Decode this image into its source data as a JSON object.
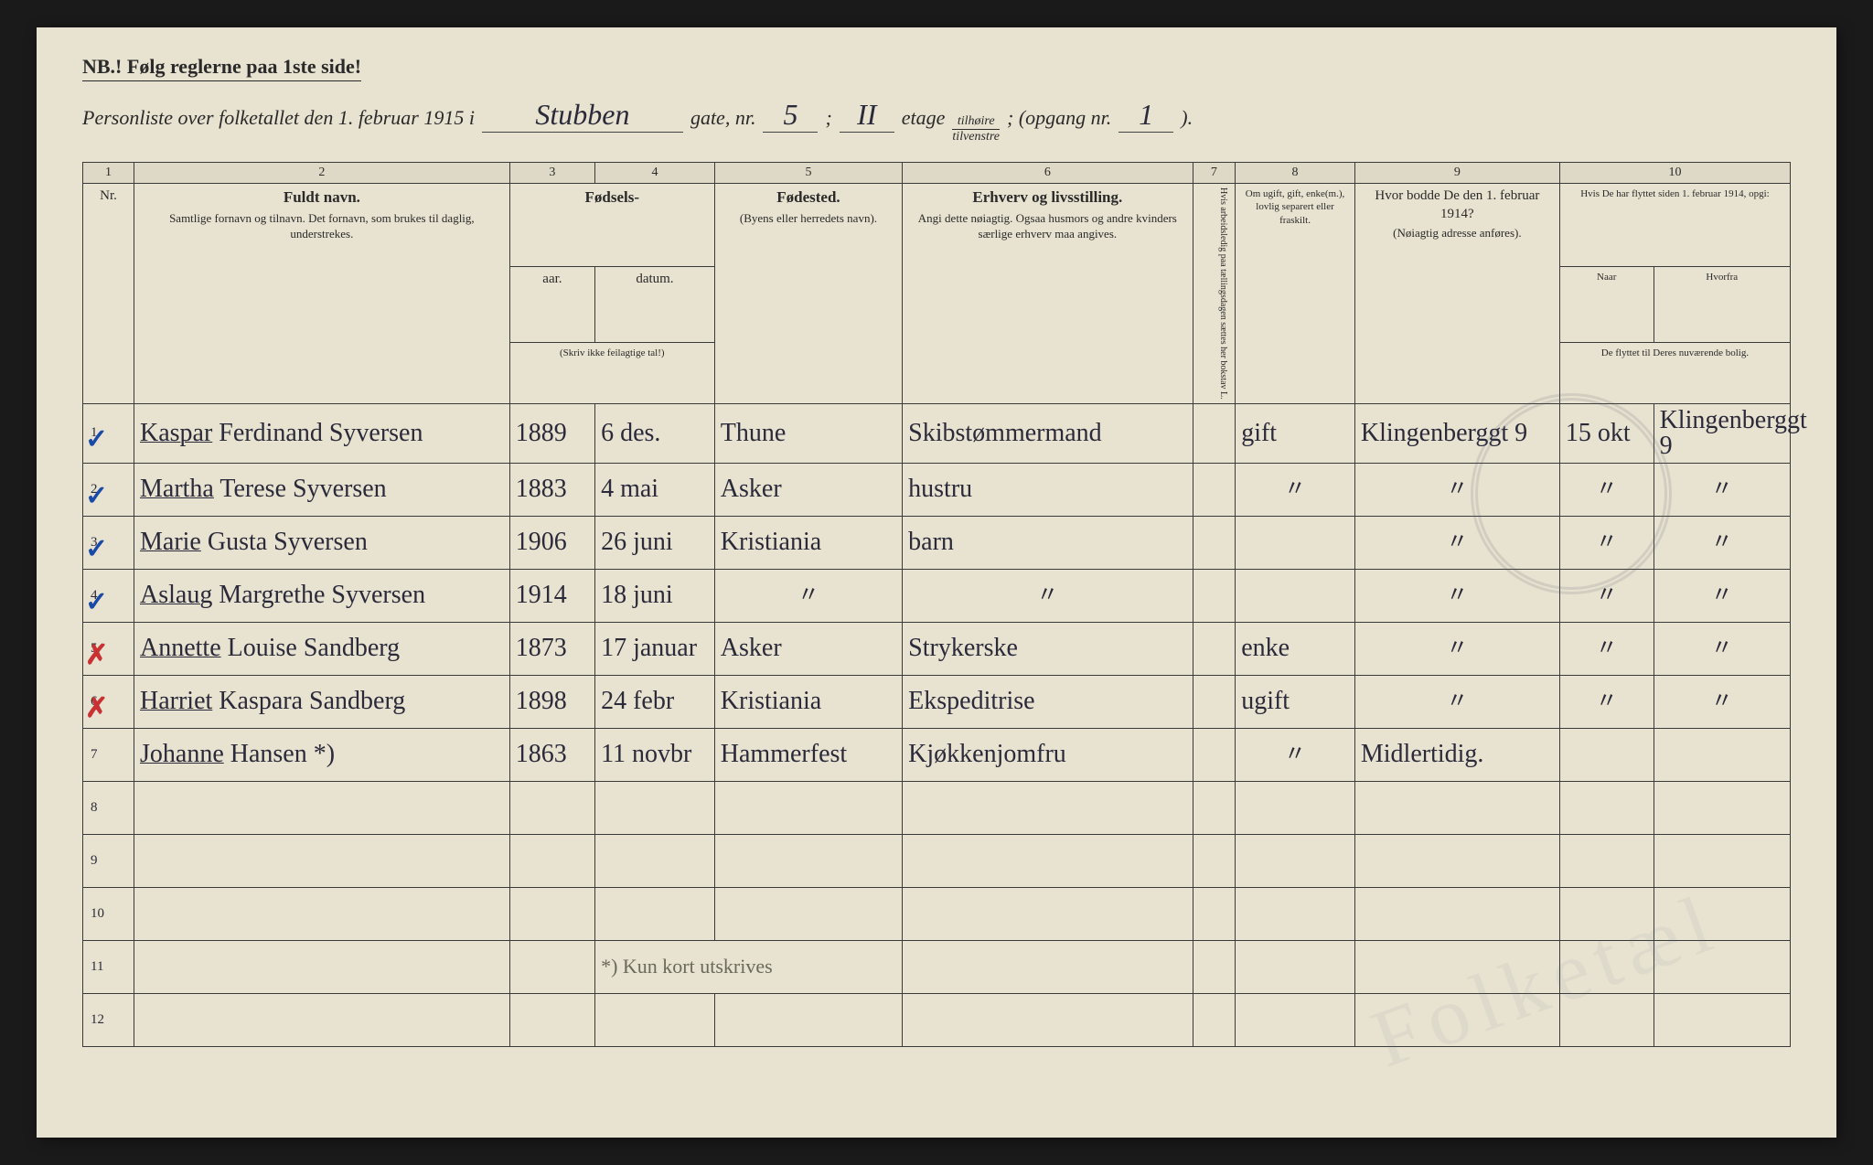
{
  "header": {
    "nb": "NB.! Følg reglerne paa 1ste side!",
    "line_prefix": "Personliste over folketallet den 1. februar 1915 i",
    "street": "Stubben",
    "gate_label": "gate, nr.",
    "gate_nr": "5",
    "etage_label_after": "etage",
    "etage": "II",
    "fraction_top": "tilhøire",
    "fraction_bot": "tilvenstre",
    "opgang_label": "; (opgang nr.",
    "opgang_nr": "1",
    "close": ")."
  },
  "columns": {
    "numbers": [
      "1",
      "2",
      "3",
      "4",
      "5",
      "6",
      "7",
      "8",
      "9",
      "10"
    ],
    "c1": "Nr.",
    "c2_main": "Fuldt navn.",
    "c2_sub": "Samtlige fornavn og tilnavn. Det fornavn, som brukes til daglig, understrekes.",
    "c34_main": "Fødsels-",
    "c3": "aar.",
    "c4": "datum.",
    "c34_sub": "(Skriv ikke feilagtige tal!)",
    "c5_main": "Fødested.",
    "c5_sub": "(Byens eller herredets navn).",
    "c6_main": "Erhverv og livsstilling.",
    "c6_sub": "Angi dette nøiagtig. Ogsaa husmors og andre kvinders særlige erhverv maa angives.",
    "c7": "Hvis arbeidsledig paa tællingsdagen sættes her bokstav L.",
    "c8": "Om ugift, gift, enke(m.), lovlig separert eller fraskilt.",
    "c9_main": "Hvor bodde De den 1. februar 1914?",
    "c9_sub": "(Nøiagtig adresse anføres).",
    "c10_main": "Hvis De har flyttet siden 1. februar 1914, opgi:",
    "c10_a": "Naar",
    "c10_b": "Hvorfra",
    "c10_sub": "De flyttet til Deres nuværende bolig."
  },
  "rows": [
    {
      "nr": "1",
      "mark": "✓",
      "mark_color": "blue",
      "name_u": "Kaspar",
      "name_rest": " Ferdinand Syversen",
      "year": "1889",
      "date": "6 des.",
      "place": "Thune",
      "occ": "Skibstømmermand",
      "c7": "",
      "status": "gift",
      "addr": "Klingenberggt 9",
      "when": "15 okt",
      "from": "Klingenberggt 9"
    },
    {
      "nr": "2",
      "mark": "✓",
      "mark_color": "blue",
      "name_u": "Martha",
      "name_rest": " Terese Syversen",
      "year": "1883",
      "date": "4 mai",
      "place": "Asker",
      "occ": "hustru",
      "c7": "",
      "status": "\"",
      "addr": "\"",
      "when": "\"",
      "from": "\""
    },
    {
      "nr": "3",
      "mark": "✓",
      "mark_color": "blue",
      "name_u": "Marie",
      "name_rest": " Gusta Syversen",
      "year": "1906",
      "date": "26 juni",
      "place": "Kristiania",
      "occ": "barn",
      "c7": "",
      "status": "",
      "addr": "\"",
      "when": "\"",
      "from": "\""
    },
    {
      "nr": "4",
      "mark": "✓",
      "mark_color": "blue",
      "name_u": "Aslaug",
      "name_rest": " Margrethe Syversen",
      "year": "1914",
      "date": "18 juni",
      "place": "\"",
      "occ": "\"",
      "c7": "",
      "status": "",
      "addr": "\"",
      "when": "\"",
      "from": "\""
    },
    {
      "nr": "5",
      "mark": "✗",
      "mark_color": "red",
      "name_u": "Annette",
      "name_rest": " Louise Sandberg",
      "year": "1873",
      "date": "17 januar",
      "place": "Asker",
      "occ": "Strykerske",
      "c7": "",
      "status": "enke",
      "addr": "\"",
      "when": "\"",
      "from": "\""
    },
    {
      "nr": "6",
      "mark": "✗",
      "mark_color": "red",
      "name_u": "Harriet",
      "name_rest": " Kaspara Sandberg",
      "year": "1898",
      "date": "24 febr",
      "place": "Kristiania",
      "occ": "Ekspeditrise",
      "c7": "",
      "status": "ugift",
      "addr": "\"",
      "when": "\"",
      "from": "\""
    },
    {
      "nr": "7",
      "mark": "",
      "mark_color": "",
      "name_u": "Johanne",
      "name_rest": " Hansen *)",
      "year": "1863",
      "date": "11 novbr",
      "place": "Hammerfest",
      "occ": "Kjøkkenjomfru",
      "c7": "",
      "status": "\"",
      "addr": "Midlertidig.",
      "when": "",
      "from": ""
    },
    {
      "nr": "8",
      "mark": "",
      "mark_color": "",
      "name_u": "",
      "name_rest": "",
      "year": "",
      "date": "",
      "place": "",
      "occ": "",
      "c7": "",
      "status": "",
      "addr": "",
      "when": "",
      "from": ""
    },
    {
      "nr": "9",
      "mark": "",
      "mark_color": "",
      "name_u": "",
      "name_rest": "",
      "year": "",
      "date": "",
      "place": "",
      "occ": "",
      "c7": "",
      "status": "",
      "addr": "",
      "when": "",
      "from": ""
    },
    {
      "nr": "10",
      "mark": "",
      "mark_color": "",
      "name_u": "",
      "name_rest": "",
      "year": "",
      "date": "",
      "place": "",
      "occ": "",
      "c7": "",
      "status": "",
      "addr": "",
      "when": "",
      "from": ""
    },
    {
      "nr": "11",
      "mark": "",
      "mark_color": "",
      "name_u": "",
      "name_rest": "",
      "year": "",
      "date": "*) Kun kort utskrives",
      "place": "",
      "occ": "",
      "c7": "",
      "status": "",
      "addr": "",
      "when": "",
      "from": "",
      "footnote": true
    },
    {
      "nr": "12",
      "mark": "",
      "mark_color": "",
      "name_u": "",
      "name_rest": "",
      "year": "",
      "date": "",
      "place": "",
      "occ": "",
      "c7": "",
      "status": "",
      "addr": "",
      "when": "",
      "from": ""
    }
  ],
  "col_widths": [
    "3%",
    "22%",
    "5%",
    "7%",
    "11%",
    "17%",
    "2.5%",
    "7%",
    "12%",
    "5.5%",
    "8%"
  ]
}
